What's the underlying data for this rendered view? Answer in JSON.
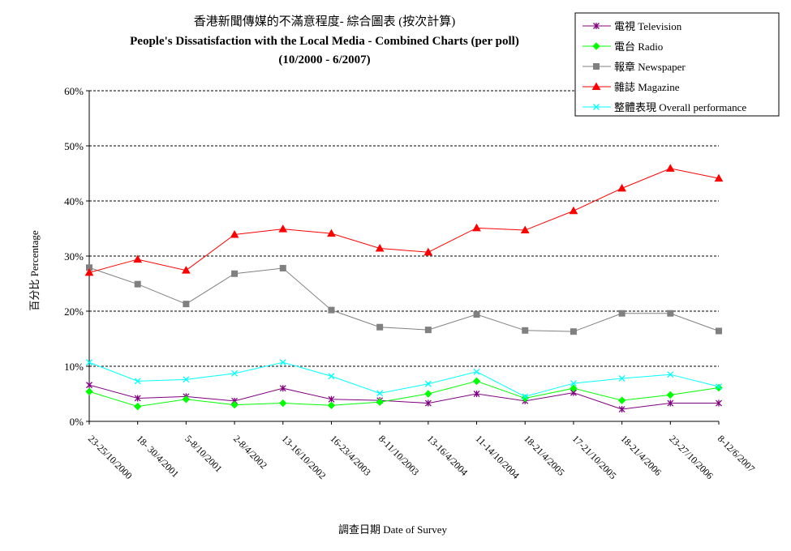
{
  "chart_data": {
    "type": "line",
    "title": "香港新聞傳媒的不滿意程度- 綜合圖表 (按次計算)",
    "subtitle": "People's Dissatisfaction with the Local Media - Combined Charts (per poll)",
    "period": "(10/2000 - 6/2007)",
    "xlabel": "調查日期 Date of Survey",
    "ylabel": "百分比 Percentage",
    "ylim": [
      0,
      60
    ],
    "yticks": [
      "0%",
      "10%",
      "20%",
      "30%",
      "40%",
      "50%",
      "60%"
    ],
    "grid": "horizontal dashed",
    "legend_position": "top-right",
    "categories": [
      "23-25/10/2000",
      "18- 30/4/2001",
      "5-8/10/2001",
      "2-8/4/2002",
      "13-16/10/2002",
      "16-23/4/2003",
      "8-11/10/2003",
      "13-16/4/2004",
      "11-14/10/2004",
      "18-21/4/2005",
      "17-21/10/2005",
      "18-21/4/2006",
      "23-27/10/2006",
      "8-12/6/2007"
    ],
    "series": [
      {
        "name": "電視 Television",
        "color": "#800080",
        "marker": "star",
        "values": [
          6.6,
          4.2,
          4.5,
          3.7,
          6.0,
          4.0,
          3.8,
          3.3,
          5.0,
          3.7,
          5.2,
          2.2,
          3.3,
          3.3
        ]
      },
      {
        "name": "電台 Radio",
        "color": "#00ff00",
        "marker": "diamond",
        "values": [
          5.4,
          2.7,
          4.0,
          3.0,
          3.3,
          2.9,
          3.5,
          5.0,
          7.3,
          4.2,
          6.0,
          3.8,
          4.8,
          6.1
        ]
      },
      {
        "name": "報章 Newspaper",
        "color": "#808080",
        "marker": "square",
        "values": [
          27.9,
          24.9,
          21.3,
          26.8,
          27.8,
          20.2,
          17.1,
          16.6,
          19.4,
          16.5,
          16.3,
          19.6,
          19.6,
          16.4
        ]
      },
      {
        "name": "雜誌 Magazine",
        "color": "#ff0000",
        "marker": "triangle",
        "values": [
          27.0,
          29.4,
          27.4,
          33.9,
          34.9,
          34.1,
          31.4,
          30.7,
          35.1,
          34.7,
          38.2,
          42.3,
          45.9,
          44.1
        ]
      },
      {
        "name": "整體表現 Overall performance",
        "color": "#00ffff",
        "marker": "x",
        "values": [
          10.7,
          7.3,
          7.6,
          8.7,
          10.7,
          8.2,
          5.1,
          6.8,
          9.0,
          4.5,
          6.9,
          7.8,
          8.5,
          6.3
        ]
      }
    ]
  }
}
